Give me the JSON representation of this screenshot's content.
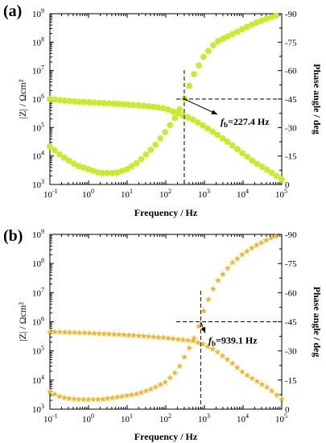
{
  "chart_data": [
    {
      "panel_label": "(a)",
      "type": "scatter",
      "xlabel": "Frequency / Hz",
      "ylabel_left": "|Z| / Ωcm²",
      "ylabel_right": "Phase angle / deg",
      "x_scale": "log",
      "xlim": [
        0.1,
        100000
      ],
      "ylim_left": [
        1000,
        1000000000
      ],
      "ylim_right": [
        0,
        -90
      ],
      "x_ticks": [
        {
          "exp": "-1"
        },
        {
          "exp": "0"
        },
        {
          "exp": "1"
        },
        {
          "exp": "2"
        },
        {
          "exp": "3"
        },
        {
          "exp": "4"
        },
        {
          "exp": "5"
        }
      ],
      "y_left_ticks": [
        {
          "exp": "3"
        },
        {
          "exp": "4"
        },
        {
          "exp": "5"
        },
        {
          "exp": "6"
        },
        {
          "exp": "7"
        },
        {
          "exp": "8"
        },
        {
          "exp": "9"
        }
      ],
      "y_right_ticks": [
        "0",
        "-15",
        "-30",
        "-45",
        "-60",
        "-75",
        "-90"
      ],
      "tick_base": "10",
      "marker": "circle",
      "color": "#c6ec2a",
      "series": [
        {
          "label_hint": "impedance",
          "axis": "left",
          "x": [
            0.1,
            0.2,
            0.5,
            1,
            2,
            5,
            10,
            20,
            50,
            100,
            227.4,
            500,
            1000,
            2000,
            5000,
            10000,
            20000,
            50000,
            100000
          ],
          "y": [
            1000000,
            900000,
            810000,
            770000,
            730000,
            680000,
            640000,
            600000,
            530000,
            460000,
            300000,
            190000,
            110000,
            60000,
            25000,
            12000,
            6000,
            2800,
            1500
          ]
        },
        {
          "label_hint": "phase",
          "axis": "right",
          "x": [
            0.1,
            0.2,
            0.5,
            1,
            2,
            5,
            10,
            20,
            50,
            100,
            200,
            300,
            500,
            1000,
            2000,
            5000,
            10000,
            20000,
            50000,
            70000
          ],
          "y": [
            -20,
            -15,
            -10,
            -8,
            -6,
            -6,
            -8,
            -12,
            -20,
            -28,
            -37,
            -45,
            -57,
            -68,
            -75,
            -79,
            -82,
            -85,
            -88,
            -89
          ]
        }
      ],
      "annotation": {
        "prefix": "f",
        "sub": "b",
        "text": "=227.4 Hz",
        "x": 300,
        "phase": -45
      }
    },
    {
      "panel_label": "(b)",
      "type": "scatter",
      "xlabel": "Frequency / Hz",
      "ylabel_left": "|Z| / Ωcm²",
      "ylabel_right": "Phase angle / deg",
      "x_scale": "log",
      "xlim": [
        0.1,
        100000
      ],
      "ylim_left": [
        1000,
        1000000000
      ],
      "ylim_right": [
        0,
        -90
      ],
      "x_ticks": [
        {
          "exp": "-1"
        },
        {
          "exp": "0"
        },
        {
          "exp": "1"
        },
        {
          "exp": "2"
        },
        {
          "exp": "3"
        },
        {
          "exp": "4"
        },
        {
          "exp": "5"
        }
      ],
      "y_left_ticks": [
        {
          "exp": "3"
        },
        {
          "exp": "4"
        },
        {
          "exp": "5"
        },
        {
          "exp": "6"
        },
        {
          "exp": "7"
        },
        {
          "exp": "8"
        },
        {
          "exp": "9"
        }
      ],
      "y_right_ticks": [
        "0",
        "-15",
        "-30",
        "-45",
        "-60",
        "-75",
        "-90"
      ],
      "tick_base": "10",
      "marker": "star",
      "color": "#f5b422",
      "series": [
        {
          "label_hint": "impedance",
          "axis": "left",
          "x": [
            0.1,
            0.2,
            0.5,
            1,
            2,
            5,
            10,
            20,
            50,
            100,
            200,
            500,
            939.1,
            2000,
            5000,
            10000,
            20000,
            50000,
            100000
          ],
          "y": [
            450000,
            440000,
            420000,
            410000,
            390000,
            370000,
            350000,
            330000,
            300000,
            280000,
            250000,
            220000,
            170000,
            100000,
            40000,
            18000,
            10000,
            4800,
            2200
          ]
        },
        {
          "label_hint": "phase",
          "axis": "right",
          "x": [
            0.1,
            0.2,
            0.5,
            1,
            2,
            5,
            10,
            20,
            50,
            100,
            200,
            500,
            800,
            1000,
            2000,
            5000,
            10000,
            20000,
            50000,
            70000
          ],
          "y": [
            -9,
            -6,
            -5,
            -5,
            -5,
            -6,
            -7,
            -8,
            -11,
            -14,
            -20,
            -35,
            -45,
            -52,
            -65,
            -75,
            -80,
            -84,
            -88,
            -89
          ]
        }
      ],
      "annotation": {
        "prefix": "f",
        "sub": "b",
        "text": "=939.1 Hz",
        "x": 800,
        "phase": -45
      }
    }
  ]
}
